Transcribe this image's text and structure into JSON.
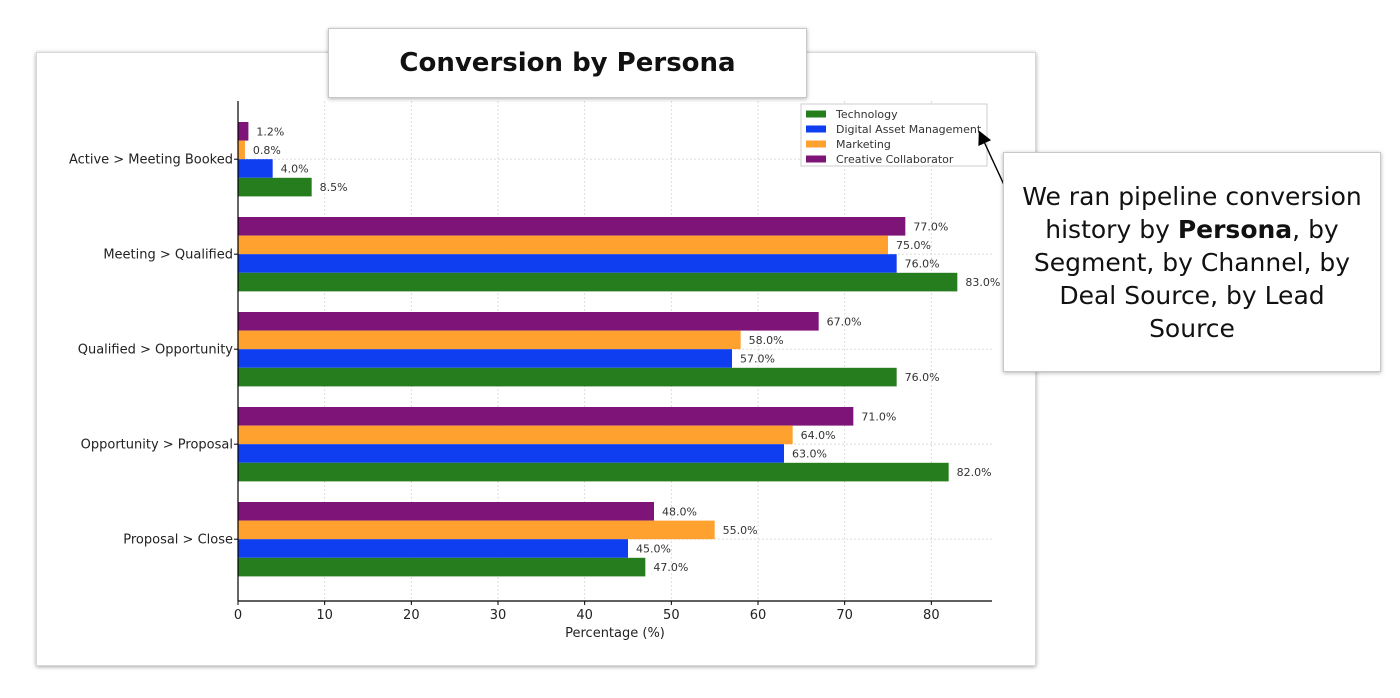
{
  "title": "Conversion by Persona",
  "callout": {
    "line1": "We ran pipeline conversion history by",
    "bold": "Persona",
    "line2": ", by Segment, by Channel, by Deal Source, by Lead Source"
  },
  "chart_data": {
    "type": "bar",
    "orientation": "horizontal",
    "categories": [
      "Active > Meeting Booked",
      "Meeting > Qualified",
      "Qualified > Opportunity",
      "Opportunity > Proposal",
      "Proposal > Close"
    ],
    "series": [
      {
        "name": "Technology",
        "color": "#267d1e",
        "values": [
          8.5,
          83.0,
          76.0,
          82.0,
          47.0
        ],
        "labels": [
          "8.5%",
          "83.0%",
          "76.0%",
          "82.0%",
          "47.0%"
        ]
      },
      {
        "name": "Digital Asset Management",
        "color": "#0f3ef0",
        "values": [
          4.0,
          76.0,
          57.0,
          63.0,
          45.0
        ],
        "labels": [
          "4.0%",
          "76.0%",
          "57.0%",
          "63.0%",
          "45.0%"
        ]
      },
      {
        "name": "Marketing",
        "color": "#ffa12e",
        "values": [
          0.8,
          75.0,
          58.0,
          64.0,
          55.0
        ],
        "labels": [
          "0.8%",
          "75.0%",
          "58.0%",
          "64.0%",
          "55.0%"
        ]
      },
      {
        "name": "Creative Collaborator",
        "color": "#7e1478",
        "values": [
          1.2,
          77.0,
          67.0,
          71.0,
          48.0
        ],
        "labels": [
          "1.2%",
          "77.0%",
          "67.0%",
          "71.0%",
          "48.0%"
        ]
      }
    ],
    "xlabel": "Percentage (%)",
    "ylabel": "",
    "xlim": [
      0,
      87
    ],
    "xticks": [
      "0",
      "10",
      "20",
      "30",
      "40",
      "50",
      "60",
      "70",
      "80"
    ],
    "grid": true,
    "legend_position": "top-right"
  }
}
